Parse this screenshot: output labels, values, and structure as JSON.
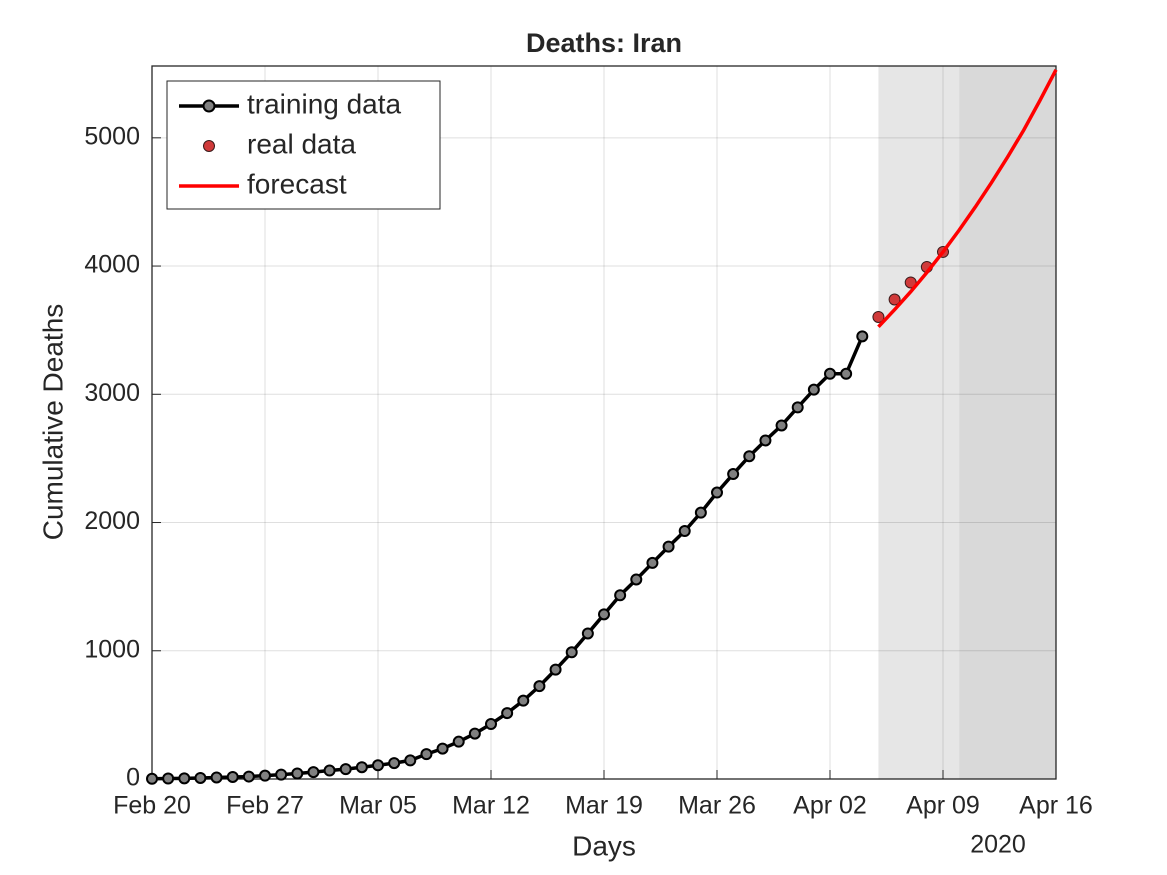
{
  "chart_data": {
    "type": "line",
    "title": "Deaths: Iran",
    "x_label": "Days",
    "y_label": "Cumulative Deaths",
    "x_year_label": "2020",
    "xlim": [
      "2020-02-20",
      "2020-04-16"
    ],
    "xticks": [
      {
        "value": "2020-02-20",
        "label": "Feb 20"
      },
      {
        "value": "2020-02-27",
        "label": "Feb 27"
      },
      {
        "value": "2020-03-05",
        "label": "Mar 05"
      },
      {
        "value": "2020-03-12",
        "label": "Mar 12"
      },
      {
        "value": "2020-03-19",
        "label": "Mar 19"
      },
      {
        "value": "2020-03-26",
        "label": "Mar 26"
      },
      {
        "value": "2020-04-02",
        "label": "Apr 02"
      },
      {
        "value": "2020-04-09",
        "label": "Apr 09"
      },
      {
        "value": "2020-04-16",
        "label": "Apr 16"
      }
    ],
    "ylim": [
      0,
      5560
    ],
    "yticks": [
      0,
      1000,
      2000,
      3000,
      4000,
      5000
    ],
    "grid": true,
    "legend_position": "upper-left",
    "shaded_regions": [
      {
        "start": "2020-04-05",
        "end": "2020-04-10",
        "color": "#e6e6e6"
      },
      {
        "start": "2020-04-10",
        "end": "2020-04-16",
        "color": "#d9d9d9"
      }
    ],
    "series": [
      {
        "name": "training data",
        "style": "line-marker",
        "color": "#000000",
        "marker_color": "#808080",
        "x": [
          "2020-02-20",
          "2020-02-21",
          "2020-02-22",
          "2020-02-23",
          "2020-02-24",
          "2020-02-25",
          "2020-02-26",
          "2020-02-27",
          "2020-02-28",
          "2020-02-29",
          "2020-03-01",
          "2020-03-02",
          "2020-03-03",
          "2020-03-04",
          "2020-03-05",
          "2020-03-06",
          "2020-03-07",
          "2020-03-08",
          "2020-03-09",
          "2020-03-10",
          "2020-03-11",
          "2020-03-12",
          "2020-03-13",
          "2020-03-14",
          "2020-03-15",
          "2020-03-16",
          "2020-03-17",
          "2020-03-18",
          "2020-03-19",
          "2020-03-20",
          "2020-03-21",
          "2020-03-22",
          "2020-03-23",
          "2020-03-24",
          "2020-03-25",
          "2020-03-26",
          "2020-03-27",
          "2020-03-28",
          "2020-03-29",
          "2020-03-30",
          "2020-03-31",
          "2020-04-01",
          "2020-04-02",
          "2020-04-03",
          "2020-04-04"
        ],
        "values": [
          2,
          4,
          5,
          8,
          12,
          16,
          19,
          26,
          34,
          43,
          54,
          66,
          77,
          92,
          107,
          124,
          145,
          194,
          237,
          291,
          354,
          429,
          514,
          611,
          724,
          853,
          988,
          1135,
          1284,
          1433,
          1556,
          1685,
          1812,
          1934,
          2077,
          2234,
          2378,
          2517,
          2640,
          2757,
          2898,
          3036,
          3160,
          3160,
          3452
        ]
      },
      {
        "name": "real data",
        "style": "marker",
        "color": "#d03a3a",
        "x": [
          "2020-04-05",
          "2020-04-06",
          "2020-04-07",
          "2020-04-08",
          "2020-04-09"
        ],
        "values": [
          3603,
          3739,
          3872,
          3993,
          4110
        ]
      },
      {
        "name": "forecast",
        "style": "line",
        "color": "#ff0000",
        "x": [
          "2020-04-05",
          "2020-04-06",
          "2020-04-07",
          "2020-04-08",
          "2020-04-09",
          "2020-04-10",
          "2020-04-11",
          "2020-04-12",
          "2020-04-13",
          "2020-04-14",
          "2020-04-15",
          "2020-04-16"
        ],
        "values": [
          3526,
          3660,
          3800,
          3950,
          4110,
          4280,
          4460,
          4650,
          4850,
          5060,
          5290,
          5530
        ]
      }
    ]
  }
}
